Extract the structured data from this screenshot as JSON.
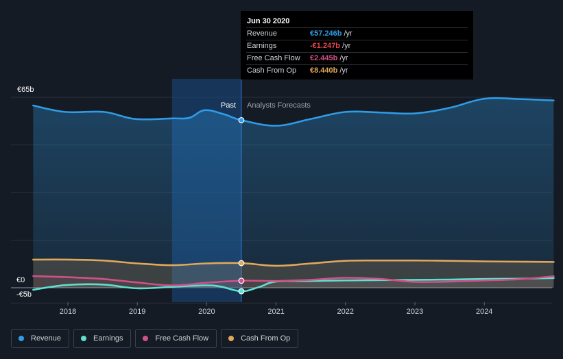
{
  "tooltip": {
    "date": "Jun 30 2020",
    "rows": [
      {
        "name": "Revenue",
        "value": "€57.246b",
        "unit": "/yr",
        "color": "#2f9ce8"
      },
      {
        "name": "Earnings",
        "value": "-€1.247b",
        "unit": "/yr",
        "color": "#e8474e"
      },
      {
        "name": "Free Cash Flow",
        "value": "€2.445b",
        "unit": "/yr",
        "color": "#d0508a"
      },
      {
        "name": "Cash From Op",
        "value": "€8.440b",
        "unit": "/yr",
        "color": "#e2a85a"
      }
    ]
  },
  "legend": [
    {
      "label": "Revenue",
      "color": "#2f9ce8"
    },
    {
      "label": "Earnings",
      "color": "#5de0cf"
    },
    {
      "label": "Free Cash Flow",
      "color": "#d0508a"
    },
    {
      "label": "Cash From Op",
      "color": "#e2a85a"
    }
  ],
  "chart_data": {
    "type": "line",
    "title": "",
    "xlabel": "",
    "ylabel": "",
    "y_unit": "€b",
    "ylim": [
      -5,
      65
    ],
    "xlim": [
      2017.5,
      2025.0
    ],
    "y_tick_labels": [
      "€65b",
      "€0",
      "-€5b"
    ],
    "x_tick_labels": [
      "2018",
      "2019",
      "2020",
      "2021",
      "2022",
      "2023",
      "2024"
    ],
    "x_ticks": [
      2018,
      2019,
      2020,
      2021,
      2022,
      2023,
      2024
    ],
    "past_label": "Past",
    "forecast_label": "Analysts Forecasts",
    "divider_x": 2020.5,
    "highlight_start": 2019.5,
    "series": [
      {
        "name": "Revenue",
        "color": "#2f9ce8",
        "x": [
          2017.5,
          2017.96,
          2018.52,
          2018.97,
          2019.5,
          2019.75,
          2019.97,
          2020.25,
          2020.5,
          2021.0,
          2021.5,
          2022.0,
          2022.5,
          2023.0,
          2023.5,
          2024.0,
          2024.5,
          2025.0
        ],
        "y": [
          62.2,
          60.0,
          60.0,
          57.6,
          57.8,
          58.0,
          60.6,
          59.2,
          57.2,
          55.3,
          57.6,
          60.0,
          59.8,
          59.5,
          61.4,
          64.5,
          64.4,
          63.9
        ]
      },
      {
        "name": "Earnings",
        "color": "#5de0cf",
        "x": [
          2017.5,
          2017.96,
          2018.5,
          2019.0,
          2019.5,
          2019.97,
          2020.2,
          2020.5,
          2020.75,
          2021.0,
          2021.5,
          2022.0,
          2022.5,
          2023.0,
          2023.5,
          2024.0,
          2024.5,
          2025.0
        ],
        "y": [
          -0.7,
          0.9,
          1.1,
          -0.2,
          0.3,
          0.8,
          0.4,
          -1.2,
          0.2,
          2.1,
          2.3,
          2.5,
          2.6,
          2.7,
          2.8,
          3.0,
          3.1,
          3.3
        ]
      },
      {
        "name": "Free Cash Flow",
        "color": "#d0508a",
        "x": [
          2017.5,
          2018.0,
          2018.5,
          2019.0,
          2019.5,
          2020.0,
          2020.5,
          2021.0,
          2021.5,
          2022.0,
          2022.5,
          2023.0,
          2023.5,
          2024.0,
          2024.5,
          2025.0
        ],
        "y": [
          4.0,
          3.6,
          3.0,
          1.8,
          0.8,
          1.7,
          2.4,
          2.3,
          2.7,
          3.4,
          3.0,
          2.0,
          2.1,
          2.5,
          2.9,
          3.9
        ]
      },
      {
        "name": "Cash From Op",
        "color": "#e2a85a",
        "x": [
          2017.5,
          2018.0,
          2018.5,
          2019.0,
          2019.5,
          2020.0,
          2020.5,
          2021.0,
          2021.5,
          2022.0,
          2022.5,
          2023.0,
          2023.5,
          2024.0,
          2024.5,
          2025.0
        ],
        "y": [
          9.6,
          9.6,
          9.3,
          8.3,
          7.7,
          8.3,
          8.4,
          7.5,
          8.3,
          9.2,
          9.3,
          9.3,
          9.2,
          9.0,
          8.9,
          8.8
        ]
      }
    ],
    "markers": [
      {
        "series": "Revenue",
        "x": 2020.5,
        "y": 57.2
      },
      {
        "series": "Cash From Op",
        "x": 2020.5,
        "y": 8.4
      },
      {
        "series": "Free Cash Flow",
        "x": 2020.5,
        "y": 2.4
      },
      {
        "series": "Earnings",
        "x": 2020.5,
        "y": -1.2
      }
    ]
  }
}
